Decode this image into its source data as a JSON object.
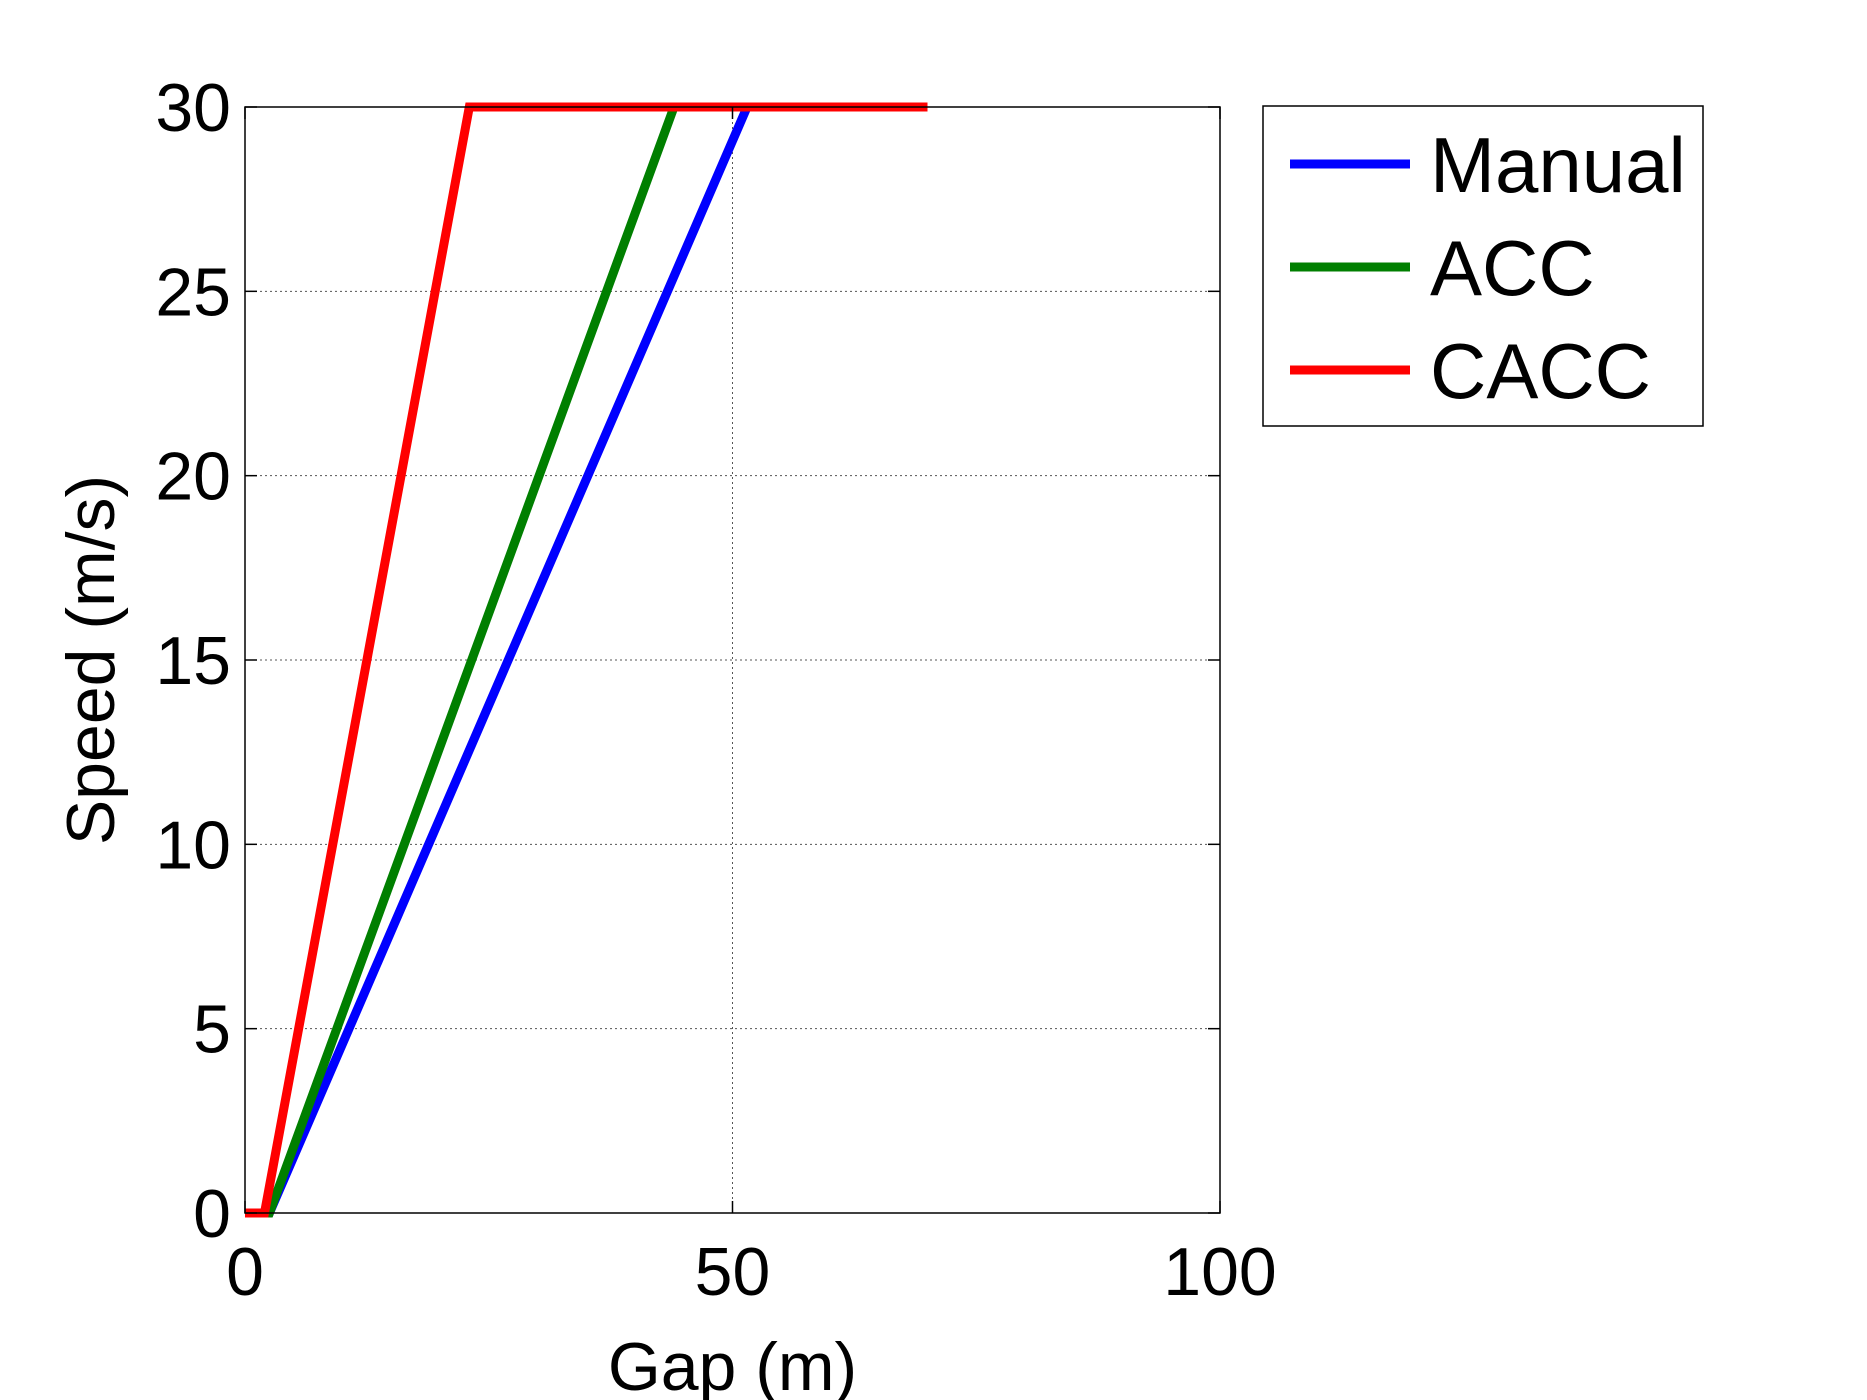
{
  "chart_data": {
    "type": "line",
    "title": "",
    "xlabel": "Gap (m)",
    "ylabel": "Speed (m/s)",
    "xlim": [
      0,
      100
    ],
    "ylim": [
      0,
      30
    ],
    "xticks": [
      0,
      50,
      100
    ],
    "xtick_labels": [
      "0",
      "50",
      "100"
    ],
    "yticks": [
      0,
      5,
      10,
      15,
      20,
      25,
      30
    ],
    "ytick_labels": [
      "0",
      "5",
      "10",
      "15",
      "20",
      "25",
      "30"
    ],
    "grid": true,
    "legend_position": "outside-right-top",
    "series": [
      {
        "name": "Manual",
        "color": "#0000ff",
        "x": [
          0,
          2.5,
          51.5
        ],
        "y": [
          0,
          0,
          30
        ]
      },
      {
        "name": "ACC",
        "color": "#007f00",
        "x": [
          0,
          2.5,
          44
        ],
        "y": [
          0,
          0,
          30
        ]
      },
      {
        "name": "CACC",
        "color": "#ff0000",
        "x": [
          0,
          2,
          23,
          70
        ],
        "y": [
          0,
          0,
          30,
          30
        ]
      }
    ]
  }
}
